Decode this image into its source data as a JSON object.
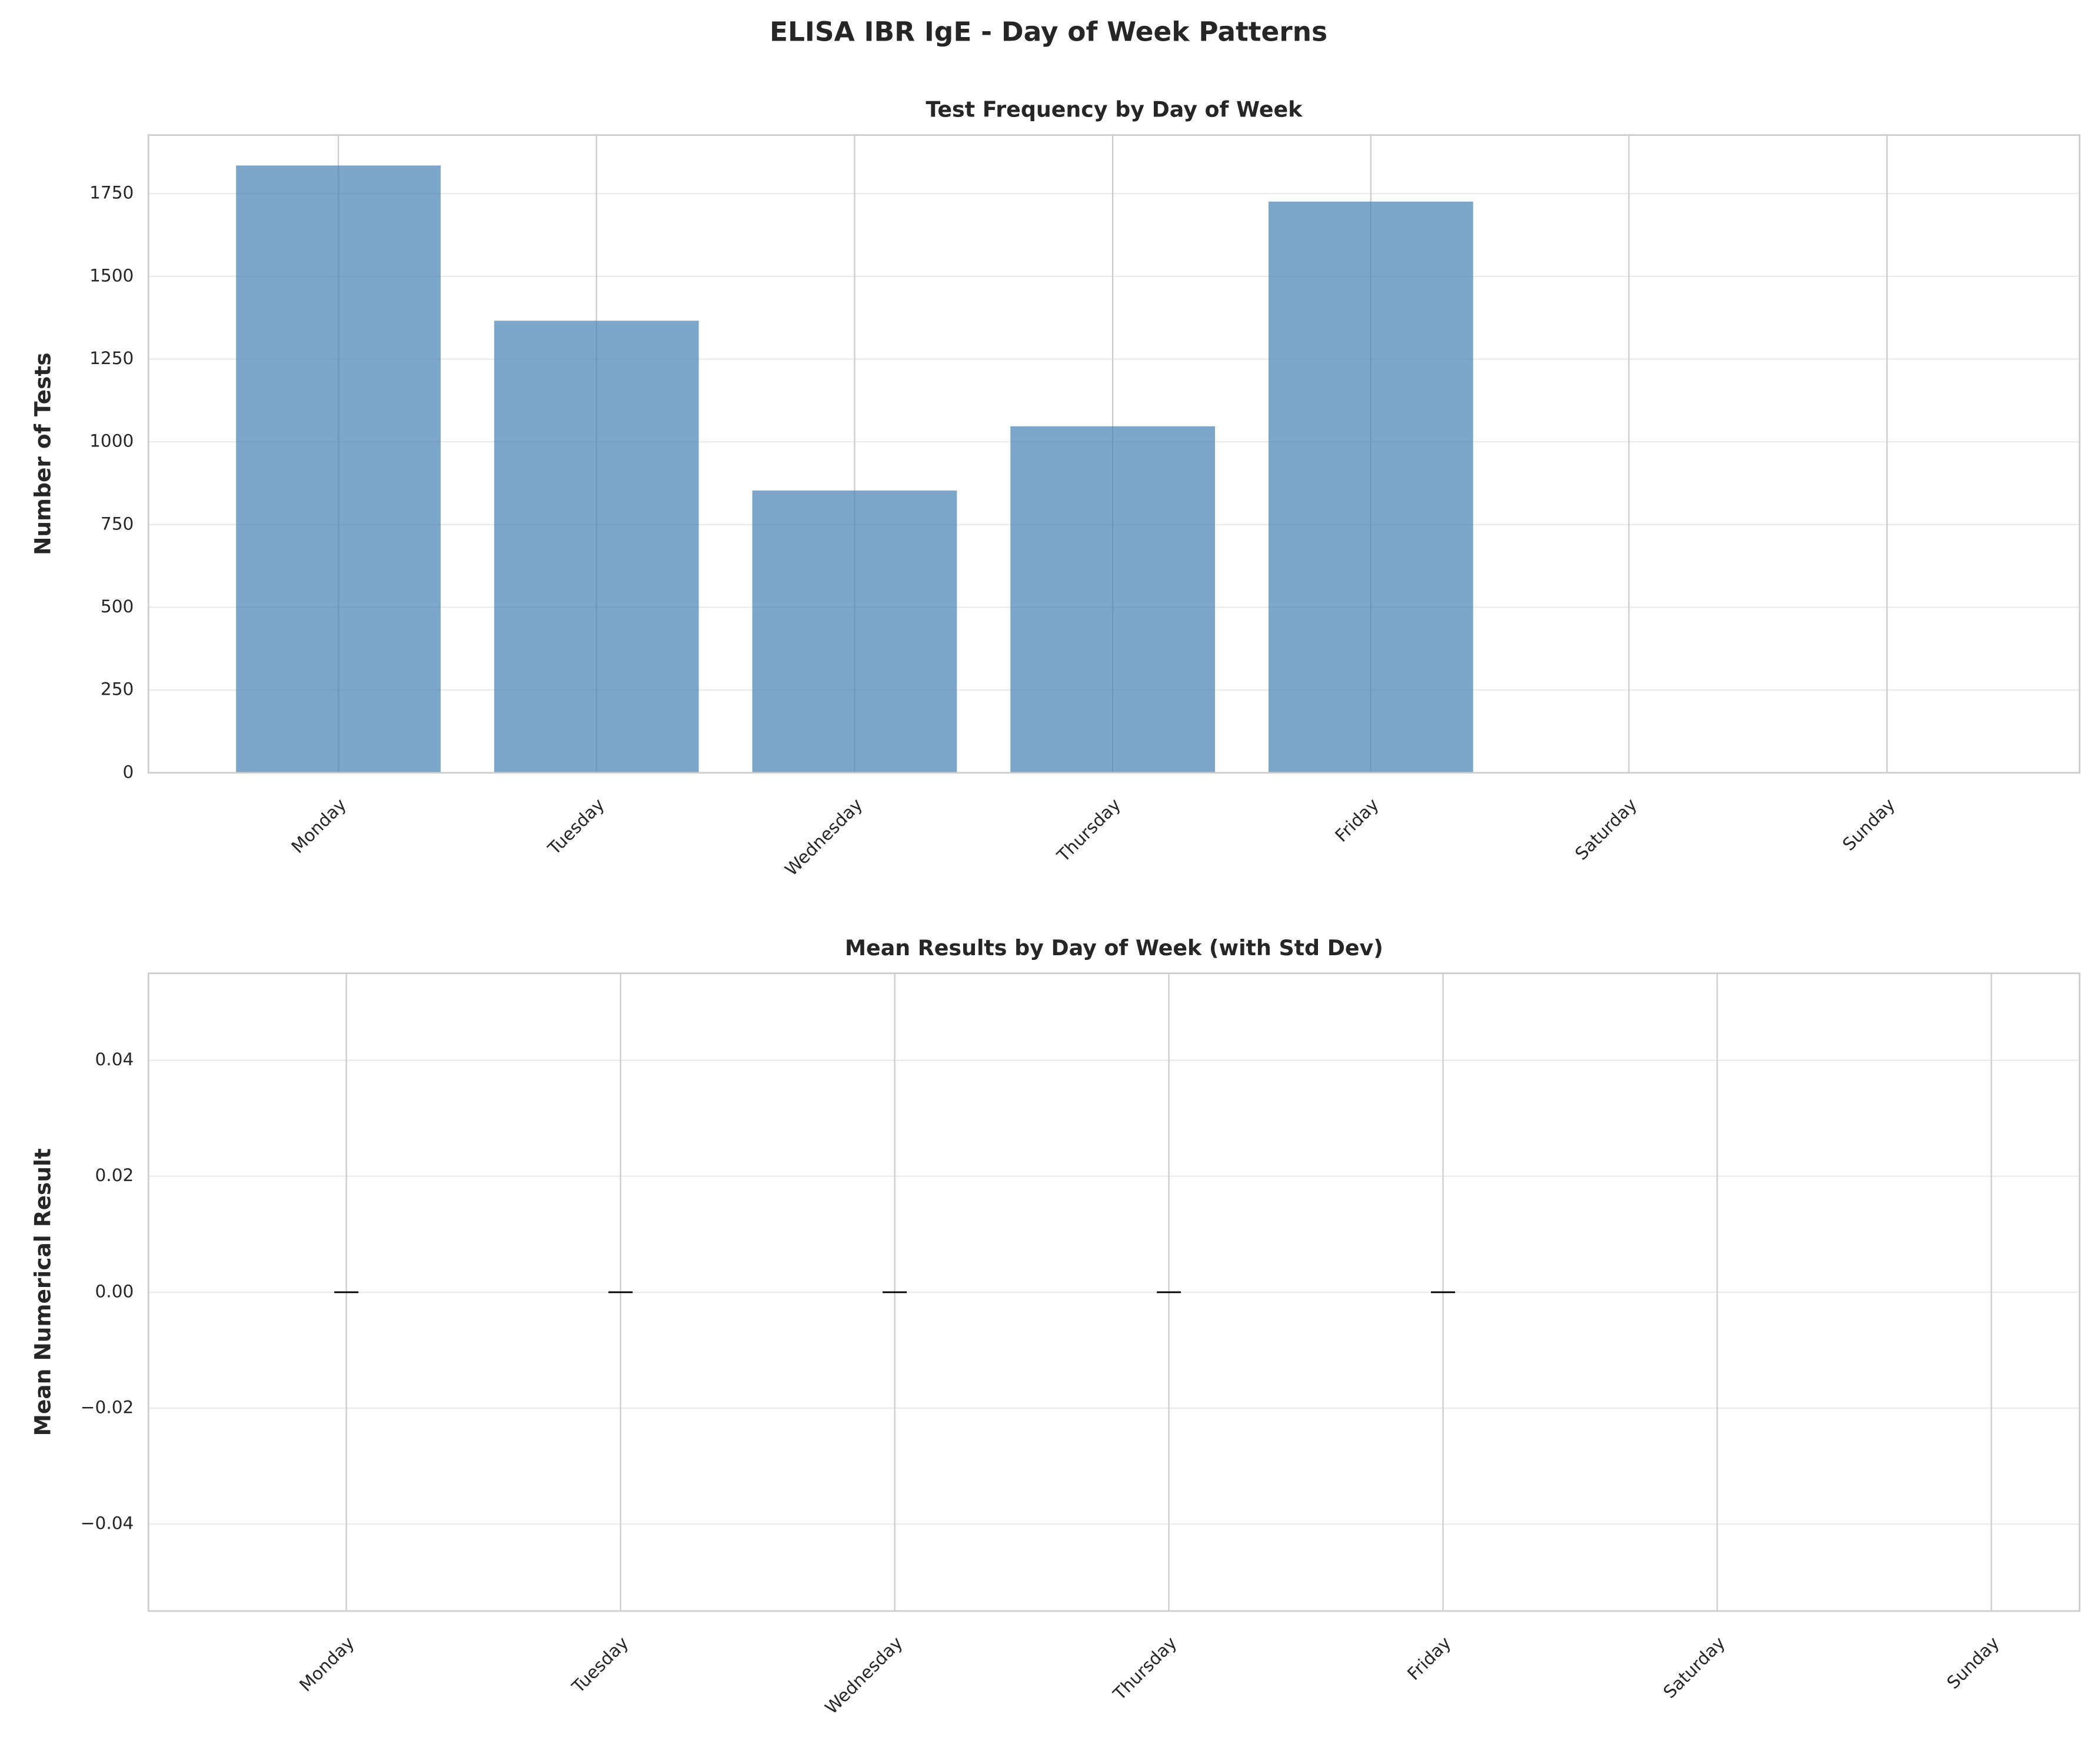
{
  "title": "ELISA IBR IgE - Day of Week Patterns",
  "chart_data": [
    {
      "type": "bar",
      "title": "Test Frequency by Day of Week",
      "ylabel": "Number of Tests",
      "categories": [
        "Monday",
        "Tuesday",
        "Wednesday",
        "Thursday",
        "Friday",
        "Saturday",
        "Sunday"
      ],
      "values": [
        1835,
        1366,
        853,
        1047,
        1726,
        null,
        null
      ],
      "color": "#4682b4",
      "ylim": [
        0,
        1927
      ],
      "yticks": [
        0,
        250,
        500,
        750,
        1000,
        1250,
        1500,
        1750
      ],
      "grid": true
    },
    {
      "type": "errorbar",
      "title": "Mean Results by Day of Week (with Std Dev)",
      "ylabel": "Mean Numerical Result",
      "categories": [
        "Monday",
        "Tuesday",
        "Wednesday",
        "Thursday",
        "Friday",
        "Saturday",
        "Sunday"
      ],
      "values": [
        0,
        0,
        0,
        0,
        0,
        null,
        null
      ],
      "errors": [
        0,
        0,
        0,
        0,
        0,
        null,
        null
      ],
      "color": "#90ee90",
      "ylim": [
        -0.055,
        0.055
      ],
      "yticks": [
        {
          "value": -0.04,
          "label": "−0.04"
        },
        {
          "value": -0.02,
          "label": "−0.02"
        },
        {
          "value": 0,
          "label": "0.00"
        },
        {
          "value": 0.02,
          "label": "0.02"
        },
        {
          "value": 0.04,
          "label": "0.04"
        }
      ],
      "grid": true
    }
  ]
}
